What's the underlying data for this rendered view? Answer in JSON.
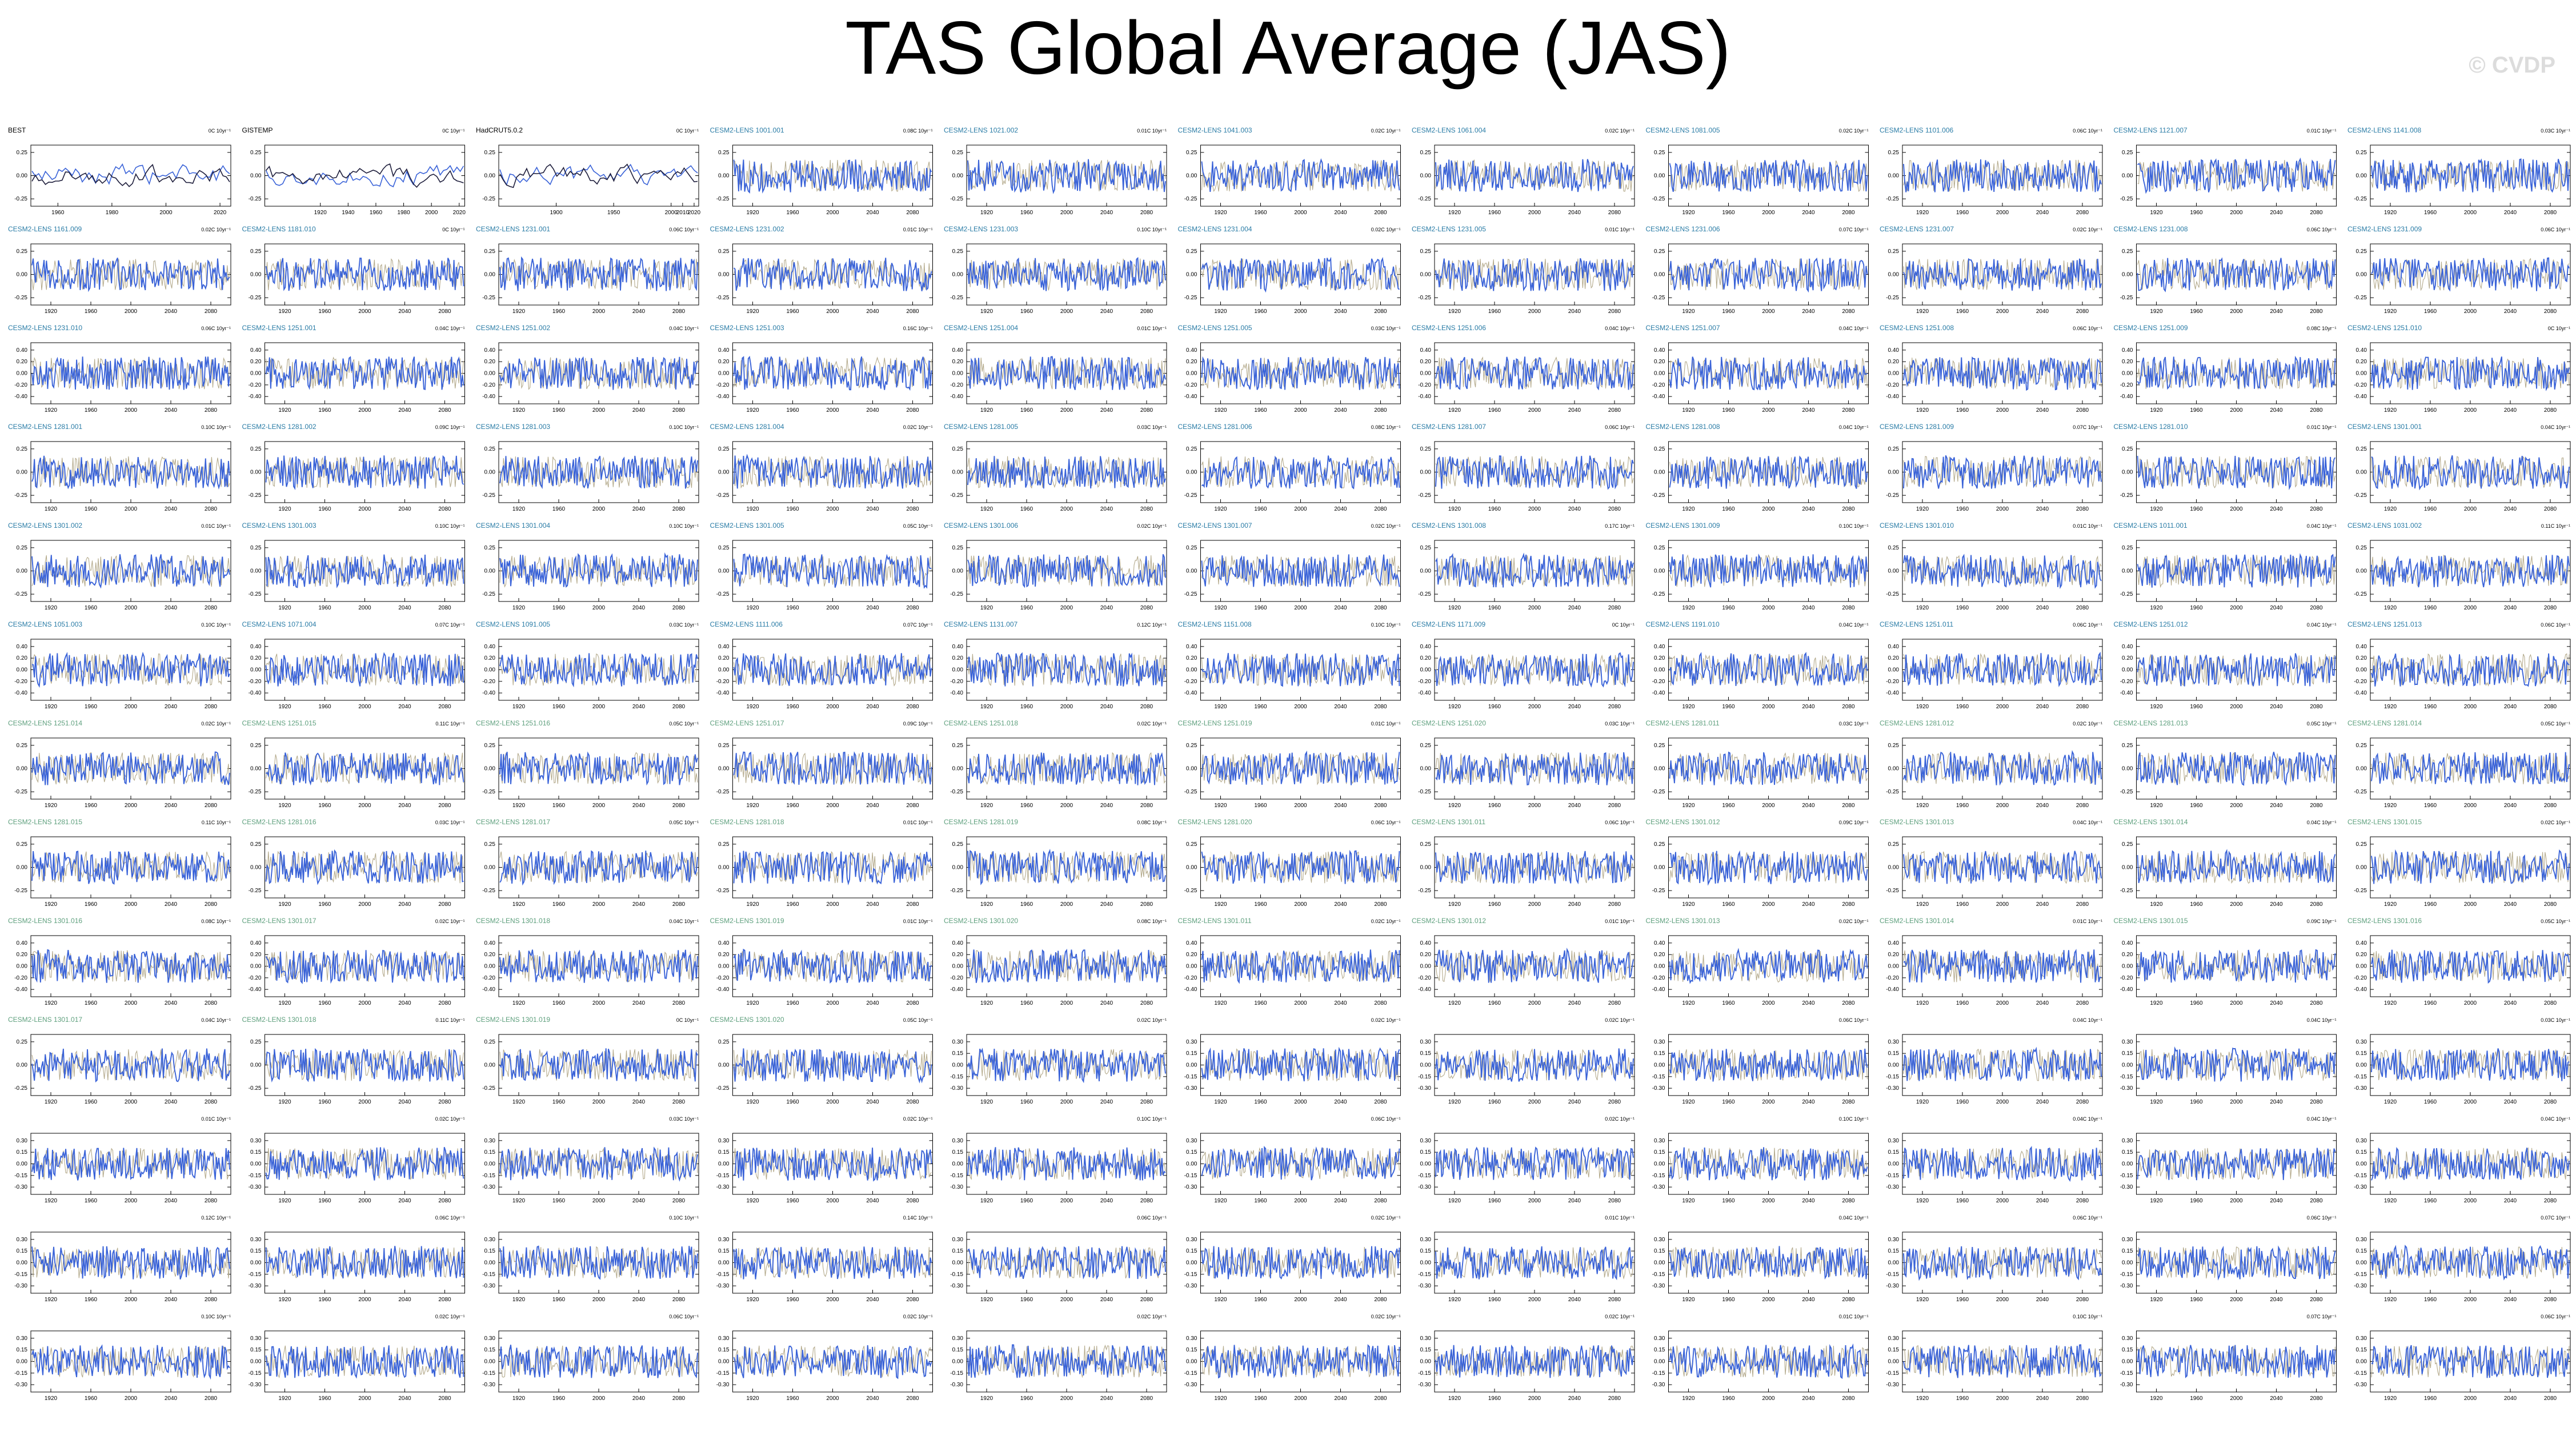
{
  "title": "TAS Global Average (JAS)",
  "watermark": "© CVDP",
  "colors": {
    "model_line": "#3a63d8",
    "obs_line": "#1e1e3c",
    "obs_overlay": "#b4aa8c"
  },
  "chart_data": {
    "type": "line",
    "grid": {
      "rows": 13,
      "cols": 11
    },
    "x_ticks_obs": [
      1960,
      1980,
      2000,
      2020
    ],
    "x_ticks_obs_3": [
      1920,
      1940,
      1960,
      1980,
      2000,
      2020
    ],
    "x_ticks_hadcrut": [
      1900,
      1950,
      2000,
      2010,
      2020
    ],
    "x_ticks_model": [
      1920,
      1960,
      2000,
      2040,
      2080
    ],
    "y_ticks_default": [
      "0.25",
      "0.00",
      "-0.25"
    ],
    "y_ticks_wide": [
      "0.40",
      "0.20",
      "0.00",
      "-0.20",
      "-0.40"
    ],
    "y_ticks_small": [
      "0.30",
      "0.15",
      "0.00",
      "-0.15",
      "-0.30"
    ],
    "panels": [
      {
        "name": "BEST",
        "trend": "0C 10yr⁻¹",
        "kind": "obs"
      },
      {
        "name": "GISTEMP",
        "trend": "0C 10yr⁻¹",
        "kind": "obs"
      },
      {
        "name": "HadCRUT5.0.2",
        "trend": "0C 10yr⁻¹",
        "kind": "obs"
      },
      {
        "name": "CESM2-LENS 1001.001",
        "trend": "0.08C 10yr⁻¹"
      },
      {
        "name": "CESM2-LENS 1021.002",
        "trend": "0.01C 10yr⁻¹"
      },
      {
        "name": "CESM2-LENS 1041.003",
        "trend": "0.02C 10yr⁻¹"
      },
      {
        "name": "CESM2-LENS 1061.004",
        "trend": "0.02C 10yr⁻¹"
      },
      {
        "name": "CESM2-LENS 1081.005",
        "trend": "0.02C 10yr⁻¹"
      },
      {
        "name": "CESM2-LENS 1101.006",
        "trend": "0.06C 10yr⁻¹"
      },
      {
        "name": "CESM2-LENS 1121.007",
        "trend": "0.01C 10yr⁻¹"
      },
      {
        "name": "CESM2-LENS 1141.008",
        "trend": "0.03C 10yr⁻¹"
      },
      {
        "name": "CESM2-LENS 1161.009",
        "trend": "0.02C 10yr⁻¹"
      },
      {
        "name": "CESM2-LENS 1181.010",
        "trend": "0C 10yr⁻¹"
      },
      {
        "name": "CESM2-LENS 1231.001",
        "trend": "0.06C 10yr⁻¹"
      },
      {
        "name": "CESM2-LENS 1231.002",
        "trend": "0.01C 10yr⁻¹"
      },
      {
        "name": "CESM2-LENS 1231.003",
        "trend": "0.10C 10yr⁻¹"
      },
      {
        "name": "CESM2-LENS 1231.004",
        "trend": "0.02C 10yr⁻¹"
      },
      {
        "name": "CESM2-LENS 1231.005",
        "trend": "0.01C 10yr⁻¹"
      },
      {
        "name": "CESM2-LENS 1231.006",
        "trend": "0.07C 10yr⁻¹"
      },
      {
        "name": "CESM2-LENS 1231.007",
        "trend": "0.02C 10yr⁻¹"
      },
      {
        "name": "CESM2-LENS 1231.008",
        "trend": "0.06C 10yr⁻¹"
      },
      {
        "name": "CESM2-LENS 1231.009",
        "trend": "0.06C 10yr⁻¹"
      },
      {
        "name": "CESM2-LENS 1231.010",
        "trend": "0.06C 10yr⁻¹"
      },
      {
        "name": "CESM2-LENS 1251.001",
        "trend": "0.04C 10yr⁻¹"
      },
      {
        "name": "CESM2-LENS 1251.002",
        "trend": "0.04C 10yr⁻¹"
      },
      {
        "name": "CESM2-LENS 1251.003",
        "trend": "0.16C 10yr⁻¹"
      },
      {
        "name": "CESM2-LENS 1251.004",
        "trend": "0.01C 10yr⁻¹"
      },
      {
        "name": "CESM2-LENS 1251.005",
        "trend": "0.03C 10yr⁻¹"
      },
      {
        "name": "CESM2-LENS 1251.006",
        "trend": "0.04C 10yr⁻¹"
      },
      {
        "name": "CESM2-LENS 1251.007",
        "trend": "0.04C 10yr⁻¹"
      },
      {
        "name": "CESM2-LENS 1251.008",
        "trend": "0.06C 10yr⁻¹"
      },
      {
        "name": "CESM2-LENS 1251.009",
        "trend": "0.08C 10yr⁻¹"
      },
      {
        "name": "CESM2-LENS 1251.010",
        "trend": "0C 10yr⁻¹"
      },
      {
        "name": "CESM2-LENS 1281.001",
        "trend": "0.10C 10yr⁻¹"
      },
      {
        "name": "CESM2-LENS 1281.002",
        "trend": "0.09C 10yr⁻¹"
      },
      {
        "name": "CESM2-LENS 1281.003",
        "trend": "0.10C 10yr⁻¹"
      },
      {
        "name": "CESM2-LENS 1281.004",
        "trend": "0.02C 10yr⁻¹"
      },
      {
        "name": "CESM2-LENS 1281.005",
        "trend": "0.03C 10yr⁻¹"
      },
      {
        "name": "CESM2-LENS 1281.006",
        "trend": "0.08C 10yr⁻¹"
      },
      {
        "name": "CESM2-LENS 1281.007",
        "trend": "0.06C 10yr⁻¹"
      },
      {
        "name": "CESM2-LENS 1281.008",
        "trend": "0.04C 10yr⁻¹"
      },
      {
        "name": "CESM2-LENS 1281.009",
        "trend": "0.07C 10yr⁻¹"
      },
      {
        "name": "CESM2-LENS 1281.010",
        "trend": "0.01C 10yr⁻¹"
      },
      {
        "name": "CESM2-LENS 1301.001",
        "trend": "0.04C 10yr⁻¹"
      },
      {
        "name": "CESM2-LENS 1301.002",
        "trend": "0.01C 10yr⁻¹"
      },
      {
        "name": "CESM2-LENS 1301.003",
        "trend": "0.10C 10yr⁻¹"
      },
      {
        "name": "CESM2-LENS 1301.004",
        "trend": "0.10C 10yr⁻¹"
      },
      {
        "name": "CESM2-LENS 1301.005",
        "trend": "0.05C 10yr⁻¹"
      },
      {
        "name": "CESM2-LENS 1301.006",
        "trend": "0.02C 10yr⁻¹"
      },
      {
        "name": "CESM2-LENS 1301.007",
        "trend": "0.02C 10yr⁻¹"
      },
      {
        "name": "CESM2-LENS 1301.008",
        "trend": "0.17C 10yr⁻¹"
      },
      {
        "name": "CESM2-LENS 1301.009",
        "trend": "0.10C 10yr⁻¹"
      },
      {
        "name": "CESM2-LENS 1301.010",
        "trend": "0.01C 10yr⁻¹"
      },
      {
        "name": "CESM2-LENS 1011.001",
        "trend": "0.04C 10yr⁻¹"
      },
      {
        "name": "CESM2-LENS 1031.002",
        "trend": "0.11C 10yr⁻¹"
      },
      {
        "name": "CESM2-LENS 1051.003",
        "trend": "0.10C 10yr⁻¹"
      },
      {
        "name": "CESM2-LENS 1071.004",
        "trend": "0.07C 10yr⁻¹"
      },
      {
        "name": "CESM2-LENS 1091.005",
        "trend": "0.03C 10yr⁻¹"
      },
      {
        "name": "CESM2-LENS 1111.006",
        "trend": "0.07C 10yr⁻¹"
      },
      {
        "name": "CESM2-LENS 1131.007",
        "trend": "0.12C 10yr⁻¹"
      },
      {
        "name": "CESM2-LENS 1151.008",
        "trend": "0.10C 10yr⁻¹"
      },
      {
        "name": "CESM2-LENS 1171.009",
        "trend": "0C 10yr⁻¹"
      },
      {
        "name": "CESM2-LENS 1191.010",
        "trend": "0.04C 10yr⁻¹"
      },
      {
        "name": "CESM2-LENS 1251.011",
        "trend": "0.06C 10yr⁻¹"
      },
      {
        "name": "CESM2-LENS 1251.012",
        "trend": "0.04C 10yr⁻¹"
      },
      {
        "name": "CESM2-LENS 1251.013",
        "trend": "0.06C 10yr⁻¹"
      },
      {
        "name": "CESM2-LENS 1251.014",
        "trend": "0.02C 10yr⁻¹"
      },
      {
        "name": "CESM2-LENS 1251.015",
        "trend": "0.11C 10yr⁻¹"
      },
      {
        "name": "CESM2-LENS 1251.016",
        "trend": "0.05C 10yr⁻¹"
      },
      {
        "name": "CESM2-LENS 1251.017",
        "trend": "0.09C 10yr⁻¹"
      },
      {
        "name": "CESM2-LENS 1251.018",
        "trend": "0.02C 10yr⁻¹"
      },
      {
        "name": "CESM2-LENS 1251.019",
        "trend": "0.01C 10yr⁻¹"
      },
      {
        "name": "CESM2-LENS 1251.020",
        "trend": "0.03C 10yr⁻¹"
      },
      {
        "name": "CESM2-LENS 1281.011",
        "trend": "0.03C 10yr⁻¹"
      },
      {
        "name": "CESM2-LENS 1281.012",
        "trend": "0.02C 10yr⁻¹"
      },
      {
        "name": "CESM2-LENS 1281.013",
        "trend": "0.05C 10yr⁻¹"
      },
      {
        "name": "CESM2-LENS 1281.014",
        "trend": "0.05C 10yr⁻¹"
      },
      {
        "name": "CESM2-LENS 1281.015",
        "trend": "0.11C 10yr⁻¹"
      },
      {
        "name": "CESM2-LENS 1281.016",
        "trend": "0.03C 10yr⁻¹"
      },
      {
        "name": "CESM2-LENS 1281.017",
        "trend": "0.05C 10yr⁻¹"
      },
      {
        "name": "CESM2-LENS 1281.018",
        "trend": "0.01C 10yr⁻¹"
      },
      {
        "name": "CESM2-LENS 1281.019",
        "trend": "0.08C 10yr⁻¹"
      },
      {
        "name": "CESM2-LENS 1281.020",
        "trend": "0.06C 10yr⁻¹"
      },
      {
        "name": "CESM2-LENS 1301.011",
        "trend": "0.06C 10yr⁻¹"
      },
      {
        "name": "CESM2-LENS 1301.012",
        "trend": "0.09C 10yr⁻¹"
      },
      {
        "name": "CESM2-LENS 1301.013",
        "trend": "0.04C 10yr⁻¹"
      },
      {
        "name": "CESM2-LENS 1301.014",
        "trend": "0.04C 10yr⁻¹"
      },
      {
        "name": "CESM2-LENS 1301.015",
        "trend": "0.02C 10yr⁻¹"
      },
      {
        "name": "CESM2-LENS 1301.016",
        "trend": "0.08C 10yr⁻¹"
      },
      {
        "name": "CESM2-LENS 1301.017",
        "trend": "0.02C 10yr⁻¹"
      },
      {
        "name": "CESM2-LENS 1301.018",
        "trend": "0.04C 10yr⁻¹"
      },
      {
        "name": "CESM2-LENS 1301.019",
        "trend": "0.01C 10yr⁻¹"
      },
      {
        "name": "CESM2-LENS 1301.020",
        "trend": "0.08C 10yr⁻¹"
      },
      {
        "name": "CESM2-LENS 1301.011",
        "trend": "0.02C 10yr⁻¹"
      },
      {
        "name": "CESM2-LENS 1301.012",
        "trend": "0.01C 10yr⁻¹"
      },
      {
        "name": "CESM2-LENS 1301.013",
        "trend": "0.02C 10yr⁻¹"
      },
      {
        "name": "CESM2-LENS 1301.014",
        "trend": "0.01C 10yr⁻¹"
      },
      {
        "name": "CESM2-LENS 1301.015",
        "trend": "0.09C 10yr⁻¹"
      },
      {
        "name": "CESM2-LENS 1301.016",
        "trend": "0.05C 10yr⁻¹"
      },
      {
        "name": "CESM2-LENS 1301.017",
        "trend": "0.04C 10yr⁻¹"
      },
      {
        "name": "CESM2-LENS 1301.018",
        "trend": "0.11C 10yr⁻¹"
      },
      {
        "name": "CESM2-LENS 1301.019",
        "trend": "0C 10yr⁻¹"
      },
      {
        "name": "CESM2-LENS 1301.020",
        "trend": "0.05C 10yr⁻¹"
      },
      {
        "name": "",
        "trend": "0.02C 10yr⁻¹",
        "faded": true
      },
      {
        "name": "",
        "trend": "0.02C 10yr⁻¹",
        "faded": true
      },
      {
        "name": "",
        "trend": "0.02C 10yr⁻¹",
        "faded": true
      },
      {
        "name": "",
        "trend": "0.06C 10yr⁻¹",
        "faded": true
      },
      {
        "name": "",
        "trend": "0.04C 10yr⁻¹",
        "faded": true
      },
      {
        "name": "",
        "trend": "0.04C 10yr⁻¹",
        "faded": true
      },
      {
        "name": "",
        "trend": "0.03C 10yr⁻¹",
        "faded": true
      },
      {
        "name": "",
        "trend": "0.01C 10yr⁻¹",
        "faded": true
      },
      {
        "name": "",
        "trend": "0.02C 10yr⁻¹",
        "faded": true
      },
      {
        "name": "",
        "trend": "0.03C 10yr⁻¹",
        "faded": true
      },
      {
        "name": "",
        "trend": "0.02C 10yr⁻¹",
        "faded": true
      },
      {
        "name": "",
        "trend": "0.10C 10yr⁻¹",
        "faded": true
      },
      {
        "name": "",
        "trend": "0.06C 10yr⁻¹",
        "faded": true
      },
      {
        "name": "",
        "trend": "0.02C 10yr⁻¹",
        "faded": true
      },
      {
        "name": "",
        "trend": "0.10C 10yr⁻¹",
        "faded": true
      },
      {
        "name": "",
        "trend": "0.04C 10yr⁻¹",
        "faded": true
      },
      {
        "name": "",
        "trend": "0.04C 10yr⁻¹",
        "faded": true
      },
      {
        "name": "",
        "trend": "0.04C 10yr⁻¹",
        "faded": true
      },
      {
        "name": "",
        "trend": "0.12C 10yr⁻¹",
        "faded": true
      },
      {
        "name": "",
        "trend": "0.06C 10yr⁻¹",
        "faded": true
      },
      {
        "name": "",
        "trend": "0.10C 10yr⁻¹",
        "faded": true
      },
      {
        "name": "",
        "trend": "0.14C 10yr⁻¹",
        "faded": true
      },
      {
        "name": "",
        "trend": "0.06C 10yr⁻¹",
        "faded": true
      },
      {
        "name": "",
        "trend": "0.02C 10yr⁻¹",
        "faded": true
      },
      {
        "name": "",
        "trend": "0.01C 10yr⁻¹",
        "faded": true
      },
      {
        "name": "",
        "trend": "0.04C 10yr⁻¹",
        "faded": true
      },
      {
        "name": "",
        "trend": "0.06C 10yr⁻¹",
        "faded": true
      },
      {
        "name": "",
        "trend": "0.06C 10yr⁻¹",
        "faded": true
      },
      {
        "name": "",
        "trend": "0.07C 10yr⁻¹",
        "faded": true
      },
      {
        "name": "",
        "trend": "0.10C 10yr⁻¹",
        "faded": true
      },
      {
        "name": "",
        "trend": "0.02C 10yr⁻¹",
        "faded": true
      },
      {
        "name": "",
        "trend": "0.06C 10yr⁻¹",
        "faded": true
      },
      {
        "name": "",
        "trend": "0.02C 10yr⁻¹",
        "faded": true
      },
      {
        "name": "",
        "trend": "0.02C 10yr⁻¹",
        "faded": true
      },
      {
        "name": "",
        "trend": "0.02C 10yr⁻¹",
        "faded": true
      },
      {
        "name": "",
        "trend": "0.02C 10yr⁻¹",
        "faded": true
      },
      {
        "name": "",
        "trend": "0.01C 10yr⁻¹",
        "faded": true
      },
      {
        "name": "",
        "trend": "0.10C 10yr⁻¹",
        "faded": true
      },
      {
        "name": "",
        "trend": "0.07C 10yr⁻¹",
        "faded": true
      },
      {
        "name": "",
        "trend": "0.06C 10yr⁻¹",
        "faded": true
      }
    ]
  }
}
